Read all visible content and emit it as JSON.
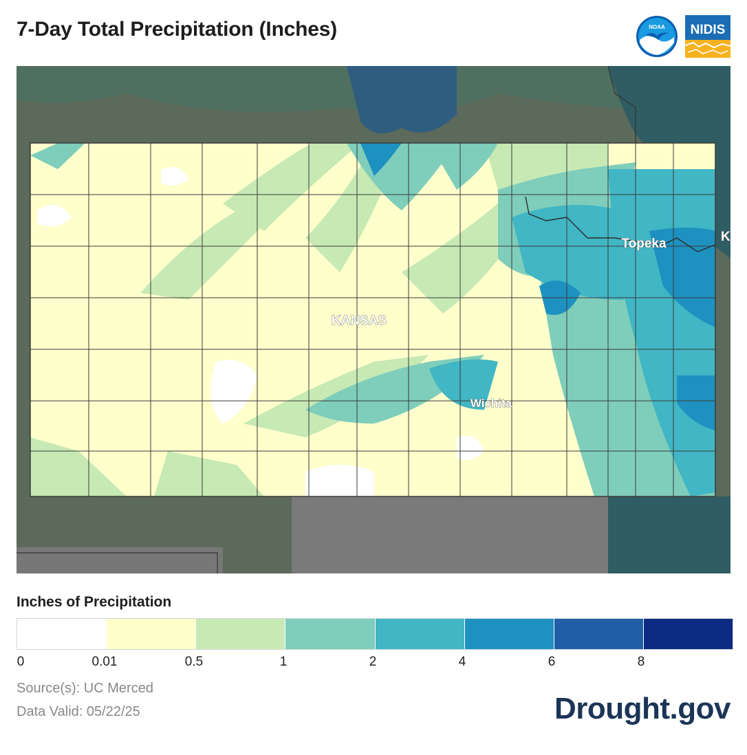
{
  "header": {
    "title": "7-Day Total Precipitation (Inches)",
    "logos": {
      "noaa_text": "NOAA",
      "nidis_text": "NIDIS"
    }
  },
  "map": {
    "state_label": "KANSAS",
    "cities": {
      "topeka": "Topeka",
      "wichita": "Wichita",
      "edge_letter": "K"
    },
    "colors": {
      "outside": "#5b6a5a",
      "outside_dry": "#7a7a7a",
      "outside_wet": "#2f5d63",
      "county_line": "#3a3a3a"
    }
  },
  "legend": {
    "title": "Inches of Precipitation",
    "bins": [
      {
        "label": "0",
        "color": "#ffffff"
      },
      {
        "label": "0.01",
        "color": "#ffffcc"
      },
      {
        "label": "0.5",
        "color": "#c7e9b4"
      },
      {
        "label": "1",
        "color": "#7fcdbb"
      },
      {
        "label": "2",
        "color": "#41b6c4"
      },
      {
        "label": "4",
        "color": "#1d91c0"
      },
      {
        "label": "6",
        "color": "#225ea8"
      },
      {
        "label": "8",
        "color": "#0c2c84"
      }
    ]
  },
  "footer": {
    "source": "Source(s): UC Merced",
    "valid": "Data Valid: 05/22/25",
    "brand": "Drought.gov"
  }
}
